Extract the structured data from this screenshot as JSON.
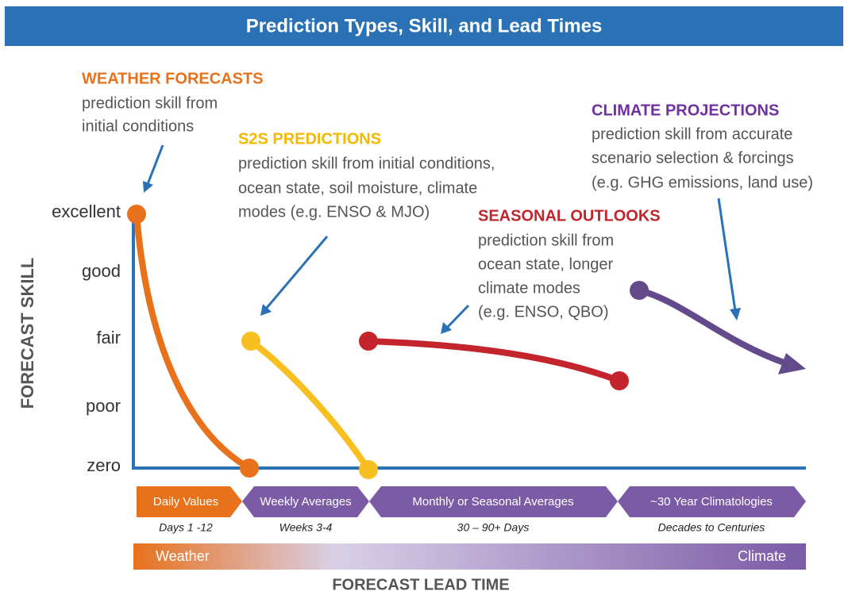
{
  "header": {
    "title": "Prediction Types, Skill, and Lead Times"
  },
  "y_axis": {
    "title": "FORECAST SKILL",
    "levels": [
      "excellent",
      "good",
      "fair",
      "poor",
      "zero"
    ]
  },
  "x_axis": {
    "title": "FORECAST LEAD TIME"
  },
  "annotations": [
    {
      "heading": "WEATHER FORECASTS",
      "lines": [
        "prediction skill from",
        "initial conditions"
      ]
    },
    {
      "heading": "S2S PREDICTIONS",
      "lines": [
        "prediction skill from initial conditions,",
        "ocean state, soil moisture, climate",
        "modes (e.g. ENSO & MJO)"
      ]
    },
    {
      "heading": "SEASONAL OUTLOOKS",
      "lines": [
        "prediction skill from",
        "ocean state, longer",
        "climate modes",
        "(e.g. ENSO, QBO)"
      ]
    },
    {
      "heading": "CLIMATE PROJECTIONS",
      "lines": [
        "prediction skill from accurate",
        "scenario selection & forcings",
        "(e.g. GHG emissions, land use)"
      ]
    }
  ],
  "periods": [
    {
      "label": "Daily Values",
      "range": "Days 1 -12"
    },
    {
      "label": "Weekly Averages",
      "range": "Weeks 3-4"
    },
    {
      "label": "Monthly or Seasonal Averages",
      "range": "30 – 90+ Days"
    },
    {
      "label": "~30 Year Climatologies",
      "range": "Decades to Centuries"
    }
  ],
  "gradient": {
    "start": "Weather",
    "end": "Climate"
  }
}
